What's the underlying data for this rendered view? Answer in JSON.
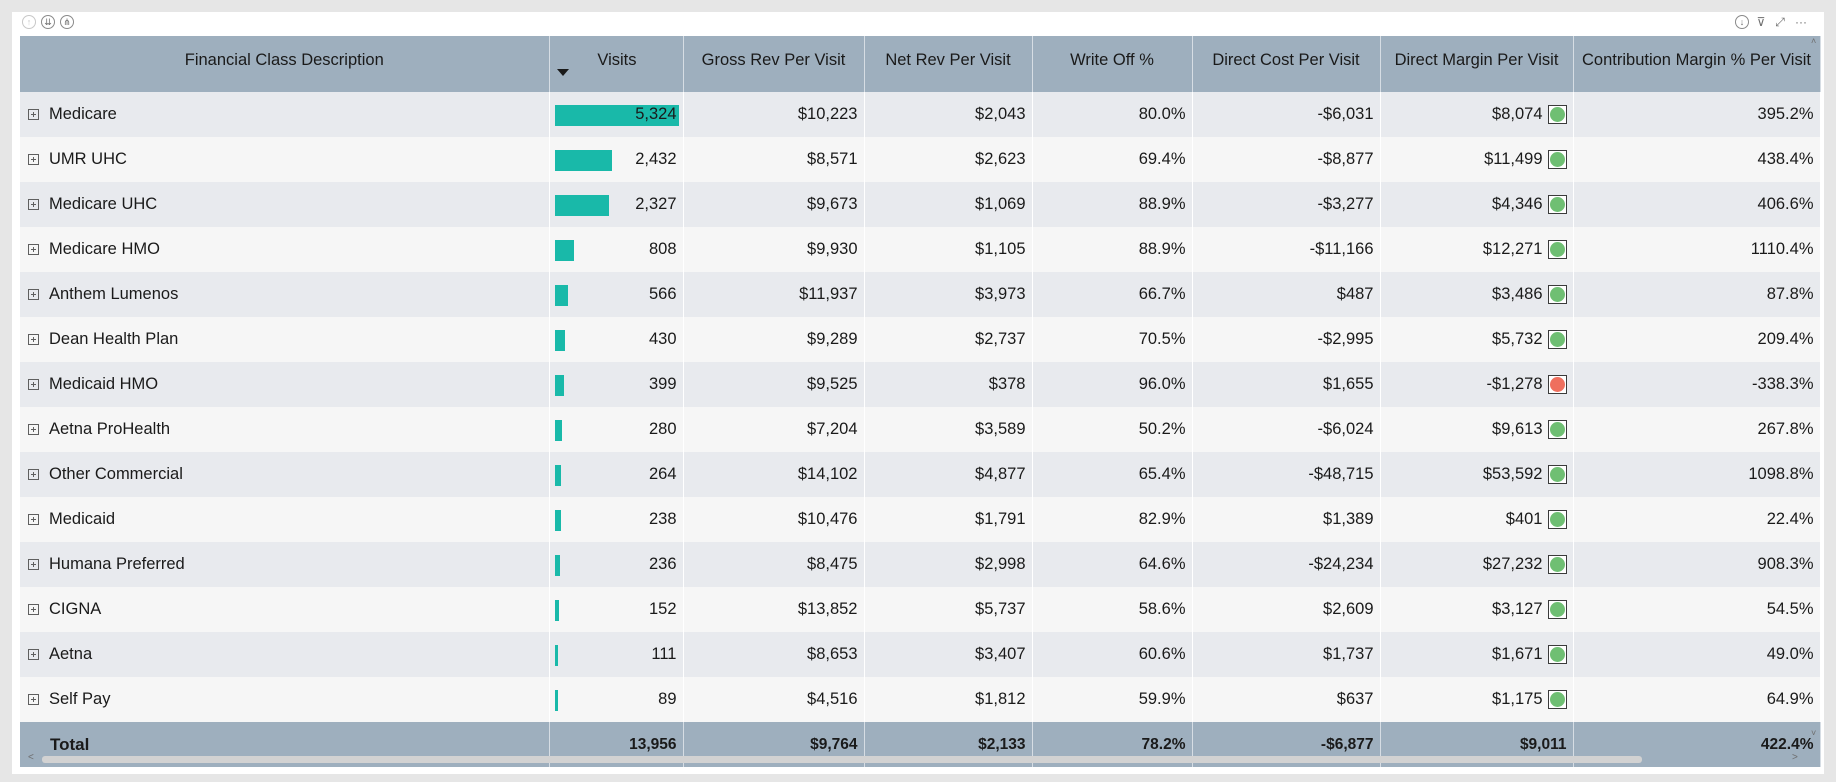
{
  "toolbar": {
    "left_icons": [
      "drill-up-icon",
      "drill-down-all-icon",
      "expand-hierarchy-icon"
    ],
    "right_icons": [
      "drill-down-icon",
      "filter-icon",
      "focus-mode-icon",
      "more-options-icon"
    ],
    "glyphs": {
      "drill_up": "↑",
      "drill_down_all": "⇊",
      "expand": "⋔",
      "drill_down": "↓",
      "filter": "⊽",
      "focus": "⤢",
      "more": "···"
    }
  },
  "table": {
    "headers": [
      "Financial Class Description",
      "Visits",
      "Gross Rev Per Visit",
      "Net Rev Per Visit",
      "Write Off %",
      "Direct Cost Per Visit",
      "Direct Margin Per Visit",
      "Contribution Margin % Per Visit"
    ],
    "sort_column": "Visits",
    "sort_direction": "descending",
    "bar_color": "#19b9a9",
    "kpi_colors": {
      "good": "#6fbf73",
      "bad": "#ef6f5e"
    },
    "max_visits": 5324,
    "rows": [
      {
        "name": "Medicare",
        "visits": 5324,
        "visits_label": "5,324",
        "gross": "$10,223",
        "net": "$2,043",
        "writeoff": "80.0%",
        "cost": "-$6,031",
        "margin": "$8,074",
        "status": "good",
        "contrib": "395.2%"
      },
      {
        "name": "UMR UHC",
        "visits": 2432,
        "visits_label": "2,432",
        "gross": "$8,571",
        "net": "$2,623",
        "writeoff": "69.4%",
        "cost": "-$8,877",
        "margin": "$11,499",
        "status": "good",
        "contrib": "438.4%"
      },
      {
        "name": "Medicare UHC",
        "visits": 2327,
        "visits_label": "2,327",
        "gross": "$9,673",
        "net": "$1,069",
        "writeoff": "88.9%",
        "cost": "-$3,277",
        "margin": "$4,346",
        "status": "good",
        "contrib": "406.6%"
      },
      {
        "name": "Medicare HMO",
        "visits": 808,
        "visits_label": "808",
        "gross": "$9,930",
        "net": "$1,105",
        "writeoff": "88.9%",
        "cost": "-$11,166",
        "margin": "$12,271",
        "status": "good",
        "contrib": "1110.4%"
      },
      {
        "name": "Anthem Lumenos",
        "visits": 566,
        "visits_label": "566",
        "gross": "$11,937",
        "net": "$3,973",
        "writeoff": "66.7%",
        "cost": "$487",
        "margin": "$3,486",
        "status": "good",
        "contrib": "87.8%"
      },
      {
        "name": "Dean Health Plan",
        "visits": 430,
        "visits_label": "430",
        "gross": "$9,289",
        "net": "$2,737",
        "writeoff": "70.5%",
        "cost": "-$2,995",
        "margin": "$5,732",
        "status": "good",
        "contrib": "209.4%"
      },
      {
        "name": "Medicaid HMO",
        "visits": 399,
        "visits_label": "399",
        "gross": "$9,525",
        "net": "$378",
        "writeoff": "96.0%",
        "cost": "$1,655",
        "margin": "-$1,278",
        "status": "bad",
        "contrib": "-338.3%"
      },
      {
        "name": "Aetna ProHealth",
        "visits": 280,
        "visits_label": "280",
        "gross": "$7,204",
        "net": "$3,589",
        "writeoff": "50.2%",
        "cost": "-$6,024",
        "margin": "$9,613",
        "status": "good",
        "contrib": "267.8%"
      },
      {
        "name": "Other Commercial",
        "visits": 264,
        "visits_label": "264",
        "gross": "$14,102",
        "net": "$4,877",
        "writeoff": "65.4%",
        "cost": "-$48,715",
        "margin": "$53,592",
        "status": "good",
        "contrib": "1098.8%"
      },
      {
        "name": "Medicaid",
        "visits": 238,
        "visits_label": "238",
        "gross": "$10,476",
        "net": "$1,791",
        "writeoff": "82.9%",
        "cost": "$1,389",
        "margin": "$401",
        "status": "good",
        "contrib": "22.4%"
      },
      {
        "name": "Humana Preferred",
        "visits": 236,
        "visits_label": "236",
        "gross": "$8,475",
        "net": "$2,998",
        "writeoff": "64.6%",
        "cost": "-$24,234",
        "margin": "$27,232",
        "status": "good",
        "contrib": "908.3%"
      },
      {
        "name": "CIGNA",
        "visits": 152,
        "visits_label": "152",
        "gross": "$13,852",
        "net": "$5,737",
        "writeoff": "58.6%",
        "cost": "$2,609",
        "margin": "$3,127",
        "status": "good",
        "contrib": "54.5%"
      },
      {
        "name": "Aetna",
        "visits": 111,
        "visits_label": "111",
        "gross": "$8,653",
        "net": "$3,407",
        "writeoff": "60.6%",
        "cost": "$1,737",
        "margin": "$1,671",
        "status": "good",
        "contrib": "49.0%"
      },
      {
        "name": "Self Pay",
        "visits": 89,
        "visits_label": "89",
        "gross": "$4,516",
        "net": "$1,812",
        "writeoff": "59.9%",
        "cost": "$637",
        "margin": "$1,175",
        "status": "good",
        "contrib": "64.9%"
      }
    ],
    "total": {
      "label": "Total",
      "visits": "13,956",
      "gross": "$9,764",
      "net": "$2,133",
      "writeoff": "78.2%",
      "cost": "-$6,877",
      "margin": "$9,011",
      "contrib": "422.4%"
    }
  },
  "scrollbar": {
    "up": "˄",
    "down": "˅",
    "left": "<",
    "right": ">"
  }
}
